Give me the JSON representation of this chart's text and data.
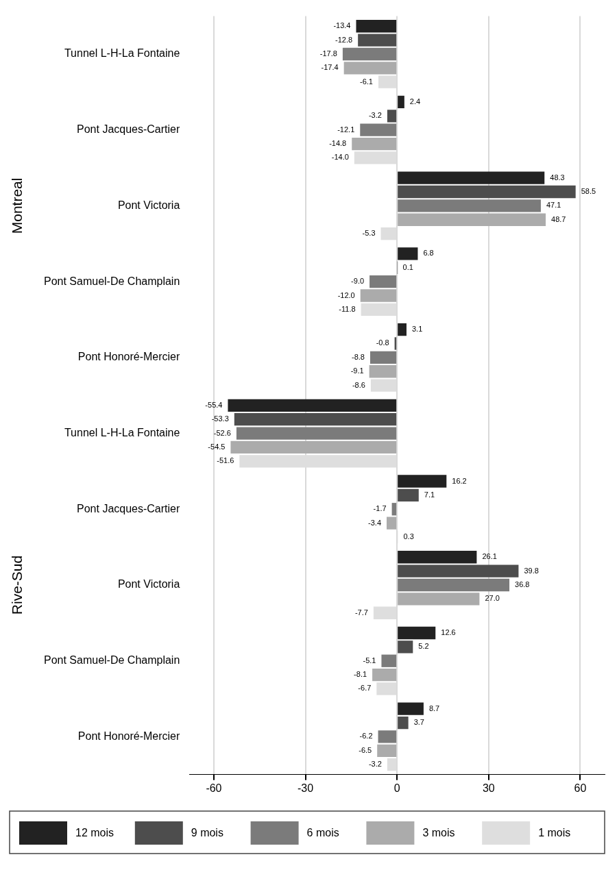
{
  "chart_data": {
    "type": "bar",
    "orientation": "horizontal",
    "categories": [
      "Tunnel L-H-La Fontaine",
      "Pont Jacques-Cartier",
      "Pont Victoria",
      "Pont Samuel-De Champlain",
      "Pont Honoré-Mercier",
      "Tunnel L-H-La Fontaine",
      "Pont Jacques-Cartier",
      "Pont Victoria",
      "Pont Samuel-De Champlain",
      "Pont Honoré-Mercier"
    ],
    "series": [
      {
        "name": "12 mois",
        "color": "#222222",
        "values": [
          -13.4,
          2.4,
          48.3,
          6.8,
          3.1,
          -55.4,
          16.2,
          26.1,
          12.6,
          8.7
        ],
        "value_labels": [
          "-13.4",
          "2.4",
          "48.3",
          "6.8",
          "3.1",
          "-55.4",
          "16.2",
          "26.1",
          "12.6",
          "8.7"
        ]
      },
      {
        "name": "9 mois",
        "color": "#4d4d4d",
        "values": [
          -12.8,
          -3.2,
          58.5,
          0.1,
          -0.8,
          -53.3,
          7.1,
          39.8,
          5.2,
          3.7
        ],
        "value_labels": [
          "-12.8",
          "-3.2",
          "58.5",
          "0.1",
          "-0.8",
          "-53.3",
          "7.1",
          "39.8",
          "5.2",
          "3.7"
        ]
      },
      {
        "name": "6 mois",
        "color": "#7b7b7b",
        "values": [
          -17.8,
          -12.1,
          47.1,
          -9.0,
          -8.8,
          -52.6,
          -1.7,
          36.8,
          -5.1,
          -6.2
        ],
        "value_labels": [
          "-17.8",
          "-12.1",
          "47.1",
          "-9.0",
          "-8.8",
          "-52.6",
          "-1.7",
          "36.8",
          "-5.1",
          "-6.2"
        ]
      },
      {
        "name": "3 mois",
        "color": "#ababab",
        "values": [
          -17.4,
          -14.8,
          48.7,
          -12.0,
          -9.1,
          -54.5,
          -3.4,
          27.0,
          -8.1,
          -6.5
        ],
        "value_labels": [
          "-17.4",
          "-14.8",
          "48.7",
          "-12.0",
          "-9.1",
          "-54.5",
          "-3.4",
          "27.0",
          "-8.1",
          "-6.5"
        ]
      },
      {
        "name": "1 mois",
        "color": "#dedede",
        "values": [
          -6.1,
          -14.0,
          -5.3,
          -11.8,
          -8.6,
          -51.6,
          0.3,
          -7.7,
          -6.7,
          -3.2
        ],
        "value_labels": [
          "-6.1",
          "-14.0",
          "-5.3",
          "-11.8",
          "-8.6",
          "-51.6",
          "0.3",
          "-7.7",
          "-6.7",
          "-3.2"
        ]
      }
    ],
    "annotations": [
      "Montreal",
      "Rive-Sud"
    ],
    "xlim": [
      -68,
      68
    ],
    "xticks": [
      -60,
      -30,
      0,
      30,
      60
    ],
    "grid": "x",
    "legend": "bottom"
  }
}
